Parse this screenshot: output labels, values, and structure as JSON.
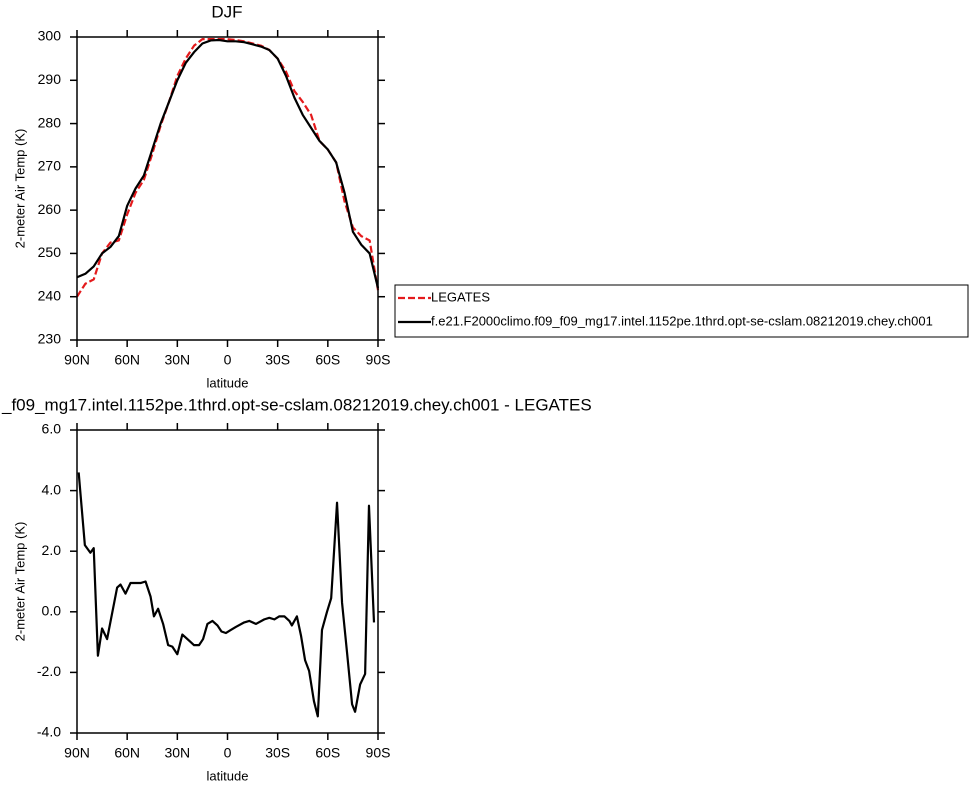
{
  "chart_data": [
    {
      "type": "line",
      "title": "DJF",
      "xlabel": "latitude",
      "ylabel": "2-meter Air Temp (K)",
      "x": [
        90,
        85,
        80,
        75,
        70,
        65,
        60,
        55,
        50,
        45,
        40,
        35,
        30,
        25,
        20,
        15,
        10,
        5,
        0,
        -5,
        -10,
        -15,
        -20,
        -25,
        -30,
        -35,
        -40,
        -45,
        -50,
        -55,
        -60,
        -65,
        -70,
        -75,
        -80,
        -85,
        -90
      ],
      "series": [
        {
          "name": "LEGATES",
          "color": "#e41a1c",
          "dash": "dashed",
          "values": [
            240,
            243,
            244,
            250,
            252.5,
            253,
            259,
            264,
            267,
            273,
            279.5,
            285,
            291,
            295,
            298,
            299.5,
            299.5,
            299.5,
            299.5,
            299.3,
            299,
            298.5,
            298,
            297,
            295,
            292,
            287.5,
            285,
            282,
            276,
            274,
            271,
            262,
            256,
            254,
            253,
            241.5
          ]
        },
        {
          "name": "f.e21.F2000climo.f09_f09_mg17.intel.1152pe.1thrd.opt-se-cslam.08212019.chey.ch001",
          "color": "#000000",
          "dash": "solid",
          "values": [
            244.5,
            245.3,
            247,
            250,
            251.5,
            254,
            261,
            265,
            268,
            274,
            280,
            285,
            290,
            294,
            296.5,
            298.5,
            299.2,
            299.3,
            299,
            299,
            298.8,
            298.3,
            297.8,
            297,
            295,
            291,
            286,
            282,
            279,
            276,
            274,
            271,
            264,
            255,
            252,
            250,
            242
          ]
        }
      ],
      "xlim": [
        90,
        -90
      ],
      "xticks": [
        {
          "value": 90,
          "label": "90N"
        },
        {
          "value": 60,
          "label": "60N"
        },
        {
          "value": 30,
          "label": "30N"
        },
        0,
        {
          "value": -30,
          "label": "30S"
        },
        {
          "value": -60,
          "label": "60S"
        },
        {
          "value": -90,
          "label": "90S"
        }
      ],
      "ylim": [
        230,
        300
      ],
      "yticks": [
        230,
        240,
        250,
        260,
        270,
        280,
        290,
        300
      ],
      "legend": "outside-right"
    },
    {
      "type": "line",
      "title": "_f09_mg17.intel.1152pe.1thrd.opt-se-cslam.08212019.chey.ch001 - LEGATES",
      "xlabel": "latitude",
      "ylabel": "2-meter Air Temp (K)",
      "x": [
        89,
        85.3,
        82,
        80,
        77.5,
        75,
        72,
        66,
        64,
        61,
        58,
        52,
        49,
        46,
        44,
        41.5,
        38.5,
        35.5,
        33,
        30,
        27,
        23,
        20,
        17,
        14.6,
        12,
        9,
        6,
        3.6,
        1,
        -2,
        -5,
        -10,
        -13,
        -17,
        -22,
        -25,
        -28,
        -31,
        -34,
        -37,
        -38.5,
        -41.5,
        -44,
        -46.4,
        -48.8,
        -51.7,
        -54,
        -56.5,
        -59.5,
        -62,
        -65.5,
        -68.5,
        -71.5,
        -74.5,
        -76.3,
        -79.3,
        -82.3,
        -84.6,
        -87.6
      ],
      "series": [
        {
          "color": "#000000",
          "dash": "solid",
          "values": [
            4.6,
            2.2,
            1.95,
            2.1,
            -1.45,
            -0.55,
            -0.9,
            0.8,
            0.9,
            0.6,
            0.95,
            0.95,
            1.0,
            0.5,
            -0.15,
            0.1,
            -0.4,
            -1.1,
            -1.15,
            -1.4,
            -0.75,
            -0.95,
            -1.1,
            -1.1,
            -0.9,
            -0.4,
            -0.3,
            -0.45,
            -0.65,
            -0.7,
            -0.6,
            -0.5,
            -0.35,
            -0.3,
            -0.4,
            -0.25,
            -0.2,
            -0.25,
            -0.15,
            -0.15,
            -0.3,
            -0.45,
            -0.15,
            -0.8,
            -1.6,
            -1.95,
            -2.95,
            -3.45,
            -0.6,
            0,
            0.45,
            3.6,
            0.3,
            -1.35,
            -3.05,
            -3.3,
            -2.4,
            -2.05,
            3.5,
            -0.35
          ]
        }
      ],
      "xlim": [
        90,
        -90
      ],
      "xticks": [
        {
          "value": 90,
          "label": "90N"
        },
        {
          "value": 60,
          "label": "60N"
        },
        {
          "value": 30,
          "label": "30N"
        },
        0,
        {
          "value": -30,
          "label": "30S"
        },
        {
          "value": -60,
          "label": "60S"
        },
        {
          "value": -90,
          "label": "90S"
        }
      ],
      "ylim": [
        -4,
        6
      ],
      "yticks": [
        {
          "value": -4,
          "label": "-4.0"
        },
        {
          "value": -2,
          "label": "-2.0"
        },
        {
          "value": 0,
          "label": "0.0"
        },
        {
          "value": 2,
          "label": "2.0"
        },
        {
          "value": 4,
          "label": "4.0"
        },
        {
          "value": 6,
          "label": "6.0"
        }
      ]
    }
  ]
}
